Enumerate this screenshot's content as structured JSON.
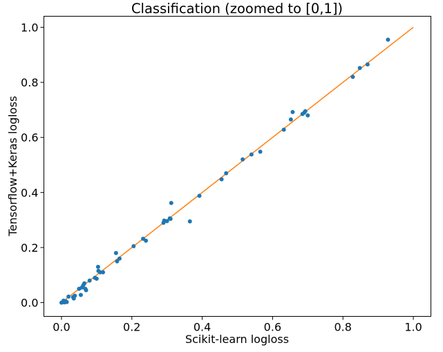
{
  "chart_data": {
    "type": "scatter",
    "title": "Classification (zoomed to [0,1])",
    "xlabel": "Scikit-learn logloss",
    "ylabel": "Tensorflow+Keras logloss",
    "xlim": [
      -0.05,
      1.05
    ],
    "ylim": [
      -0.05,
      1.04
    ],
    "xticks": [
      0.0,
      0.2,
      0.4,
      0.6,
      0.8,
      1.0
    ],
    "xtick_labels": [
      "0.0",
      "0.2",
      "0.4",
      "0.6",
      "0.8",
      "1.0"
    ],
    "yticks": [
      0.0,
      0.2,
      0.4,
      0.6,
      0.8,
      1.0
    ],
    "ytick_labels": [
      "0.0",
      "0.2",
      "0.4",
      "0.6",
      "0.8",
      "1.0"
    ],
    "grid": false,
    "colors": {
      "points": "#1f77b4",
      "reference_line": "#ff7f0e"
    },
    "reference_line": {
      "x": [
        0.0,
        1.0
      ],
      "y": [
        0.0,
        1.0
      ]
    },
    "points": [
      {
        "x": 0.0,
        "y": 0.0
      },
      {
        "x": 0.003,
        "y": 0.002
      },
      {
        "x": 0.005,
        "y": 0.004
      },
      {
        "x": 0.008,
        "y": 0.001
      },
      {
        "x": 0.01,
        "y": 0.003
      },
      {
        "x": 0.012,
        "y": 0.005
      },
      {
        "x": 0.006,
        "y": 0.007
      },
      {
        "x": 0.015,
        "y": 0.002
      },
      {
        "x": 0.02,
        "y": 0.022
      },
      {
        "x": 0.033,
        "y": 0.02
      },
      {
        "x": 0.035,
        "y": 0.015
      },
      {
        "x": 0.038,
        "y": 0.025
      },
      {
        "x": 0.05,
        "y": 0.05
      },
      {
        "x": 0.055,
        "y": 0.028
      },
      {
        "x": 0.058,
        "y": 0.055
      },
      {
        "x": 0.062,
        "y": 0.063
      },
      {
        "x": 0.065,
        "y": 0.07
      },
      {
        "x": 0.068,
        "y": 0.05
      },
      {
        "x": 0.07,
        "y": 0.045
      },
      {
        "x": 0.08,
        "y": 0.08
      },
      {
        "x": 0.095,
        "y": 0.09
      },
      {
        "x": 0.1,
        "y": 0.087
      },
      {
        "x": 0.104,
        "y": 0.13
      },
      {
        "x": 0.105,
        "y": 0.115
      },
      {
        "x": 0.11,
        "y": 0.11
      },
      {
        "x": 0.118,
        "y": 0.11
      },
      {
        "x": 0.155,
        "y": 0.18
      },
      {
        "x": 0.158,
        "y": 0.15
      },
      {
        "x": 0.165,
        "y": 0.16
      },
      {
        "x": 0.205,
        "y": 0.205
      },
      {
        "x": 0.232,
        "y": 0.232
      },
      {
        "x": 0.24,
        "y": 0.225
      },
      {
        "x": 0.29,
        "y": 0.29
      },
      {
        "x": 0.292,
        "y": 0.298
      },
      {
        "x": 0.3,
        "y": 0.296
      },
      {
        "x": 0.308,
        "y": 0.306
      },
      {
        "x": 0.31,
        "y": 0.304
      },
      {
        "x": 0.312,
        "y": 0.362
      },
      {
        "x": 0.365,
        "y": 0.295
      },
      {
        "x": 0.392,
        "y": 0.388
      },
      {
        "x": 0.455,
        "y": 0.448
      },
      {
        "x": 0.468,
        "y": 0.47
      },
      {
        "x": 0.515,
        "y": 0.52
      },
      {
        "x": 0.54,
        "y": 0.538
      },
      {
        "x": 0.565,
        "y": 0.548
      },
      {
        "x": 0.632,
        "y": 0.628
      },
      {
        "x": 0.652,
        "y": 0.665
      },
      {
        "x": 0.657,
        "y": 0.692
      },
      {
        "x": 0.685,
        "y": 0.685
      },
      {
        "x": 0.69,
        "y": 0.69
      },
      {
        "x": 0.693,
        "y": 0.695
      },
      {
        "x": 0.7,
        "y": 0.68
      },
      {
        "x": 0.828,
        "y": 0.82
      },
      {
        "x": 0.848,
        "y": 0.852
      },
      {
        "x": 0.87,
        "y": 0.865
      },
      {
        "x": 0.928,
        "y": 0.955
      }
    ]
  }
}
